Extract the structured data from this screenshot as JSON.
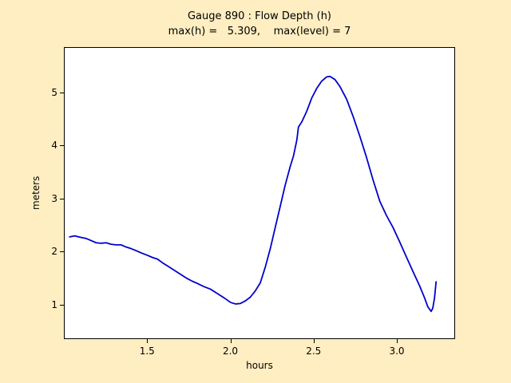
{
  "figure": {
    "bg_color": "#ffeec2",
    "title_line1": "Gauge 890 : Flow Depth (h)",
    "title_line2": "max(h) =   5.309,    max(level) = 7",
    "xlabel": "hours",
    "ylabel": "meters"
  },
  "chart_data": {
    "type": "line",
    "title": "Gauge 890 : Flow Depth (h)",
    "subtitle": "max(h) = 5.309, max(level) = 7",
    "xlabel": "hours",
    "ylabel": "meters",
    "xlim": [
      1.0,
      3.35
    ],
    "ylim": [
      0.35,
      5.85
    ],
    "x_ticks": [
      1.5,
      2.0,
      2.5,
      3.0
    ],
    "x_tick_labels": [
      "1.5",
      "2.0",
      "2.5",
      "3.0"
    ],
    "y_ticks": [
      1,
      2,
      3,
      4,
      5
    ],
    "y_tick_labels": [
      "1",
      "2",
      "3",
      "4",
      "5"
    ],
    "grid": false,
    "legend": "none",
    "line_color": "#0000cc",
    "max_h": 5.309,
    "max_level": 7,
    "series": [
      {
        "name": "h",
        "points": [
          [
            1.03,
            2.27
          ],
          [
            1.06,
            2.29
          ],
          [
            1.1,
            2.26
          ],
          [
            1.13,
            2.24
          ],
          [
            1.16,
            2.2
          ],
          [
            1.19,
            2.16
          ],
          [
            1.22,
            2.15
          ],
          [
            1.25,
            2.16
          ],
          [
            1.28,
            2.13
          ],
          [
            1.31,
            2.12
          ],
          [
            1.34,
            2.12
          ],
          [
            1.37,
            2.08
          ],
          [
            1.4,
            2.05
          ],
          [
            1.43,
            2.01
          ],
          [
            1.46,
            1.97
          ],
          [
            1.5,
            1.92
          ],
          [
            1.53,
            1.88
          ],
          [
            1.56,
            1.85
          ],
          [
            1.59,
            1.78
          ],
          [
            1.62,
            1.72
          ],
          [
            1.65,
            1.66
          ],
          [
            1.68,
            1.6
          ],
          [
            1.71,
            1.54
          ],
          [
            1.74,
            1.48
          ],
          [
            1.77,
            1.43
          ],
          [
            1.8,
            1.39
          ],
          [
            1.84,
            1.33
          ],
          [
            1.88,
            1.28
          ],
          [
            1.92,
            1.2
          ],
          [
            1.96,
            1.12
          ],
          [
            2.0,
            1.03
          ],
          [
            2.03,
            1.0
          ],
          [
            2.06,
            1.01
          ],
          [
            2.09,
            1.06
          ],
          [
            2.12,
            1.13
          ],
          [
            2.15,
            1.25
          ],
          [
            2.18,
            1.4
          ],
          [
            2.21,
            1.7
          ],
          [
            2.24,
            2.05
          ],
          [
            2.27,
            2.45
          ],
          [
            2.3,
            2.85
          ],
          [
            2.33,
            3.25
          ],
          [
            2.36,
            3.6
          ],
          [
            2.38,
            3.8
          ],
          [
            2.4,
            4.1
          ],
          [
            2.41,
            4.35
          ],
          [
            2.43,
            4.45
          ],
          [
            2.46,
            4.65
          ],
          [
            2.49,
            4.9
          ],
          [
            2.52,
            5.08
          ],
          [
            2.55,
            5.22
          ],
          [
            2.58,
            5.3
          ],
          [
            2.6,
            5.31
          ],
          [
            2.63,
            5.25
          ],
          [
            2.66,
            5.12
          ],
          [
            2.7,
            4.88
          ],
          [
            2.74,
            4.55
          ],
          [
            2.78,
            4.18
          ],
          [
            2.82,
            3.78
          ],
          [
            2.86,
            3.35
          ],
          [
            2.9,
            2.95
          ],
          [
            2.94,
            2.68
          ],
          [
            2.98,
            2.45
          ],
          [
            3.02,
            2.18
          ],
          [
            3.06,
            1.9
          ],
          [
            3.1,
            1.62
          ],
          [
            3.14,
            1.35
          ],
          [
            3.17,
            1.12
          ],
          [
            3.19,
            0.95
          ],
          [
            3.21,
            0.86
          ],
          [
            3.22,
            0.92
          ],
          [
            3.23,
            1.1
          ],
          [
            3.24,
            1.42
          ]
        ]
      }
    ]
  }
}
